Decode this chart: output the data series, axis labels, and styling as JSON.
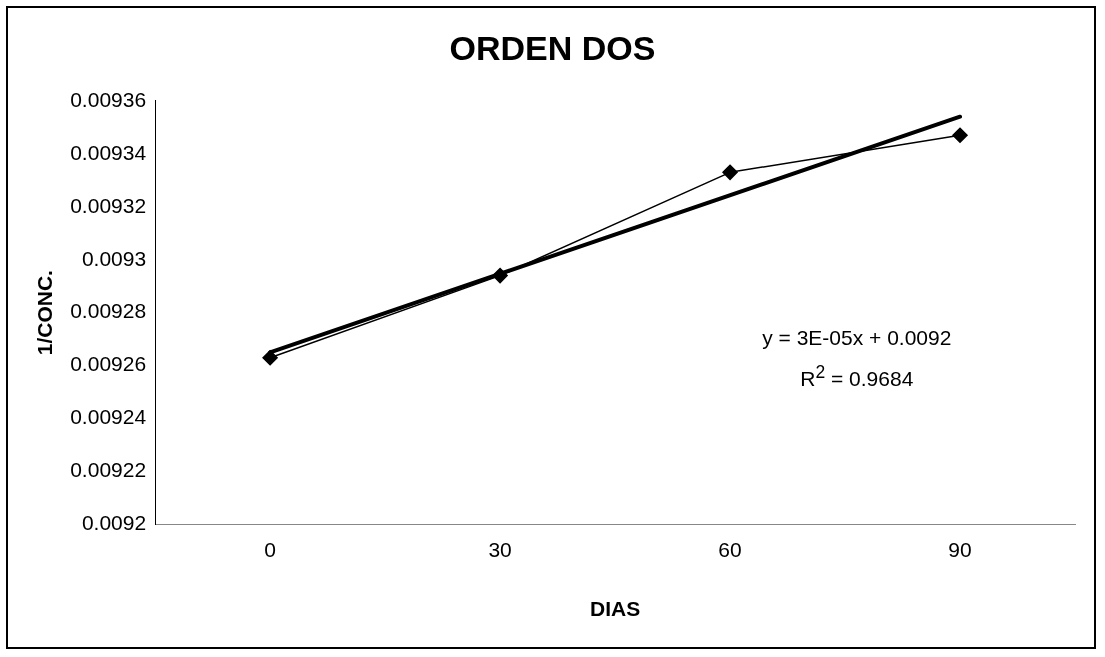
{
  "chart_data": {
    "type": "line",
    "title": "ORDEN DOS",
    "xlabel": "DIAS",
    "ylabel": "1/CONC.",
    "categories": [
      "0",
      "30",
      "60",
      "90"
    ],
    "series": [
      {
        "color": "#000000",
        "values": [
          0.009263,
          0.009294,
          0.009333,
          0.009347
        ],
        "marker": "diamond"
      },
      {
        "color": "#000000",
        "x": [
          "0",
          "90"
        ],
        "values": [
          0.009265,
          0.009354
        ],
        "marker": "none"
      }
    ],
    "ylim": [
      0.0092,
      0.00936
    ],
    "yticks": [
      0.0092,
      0.00922,
      0.00924,
      0.00926,
      0.00928,
      0.0093,
      0.00932,
      0.00934,
      0.00936
    ],
    "grid": false,
    "legend": false,
    "annotations": [
      "y = 3E-05x + 0.0092",
      "R$^{2}$ = 0.9684"
    ]
  }
}
